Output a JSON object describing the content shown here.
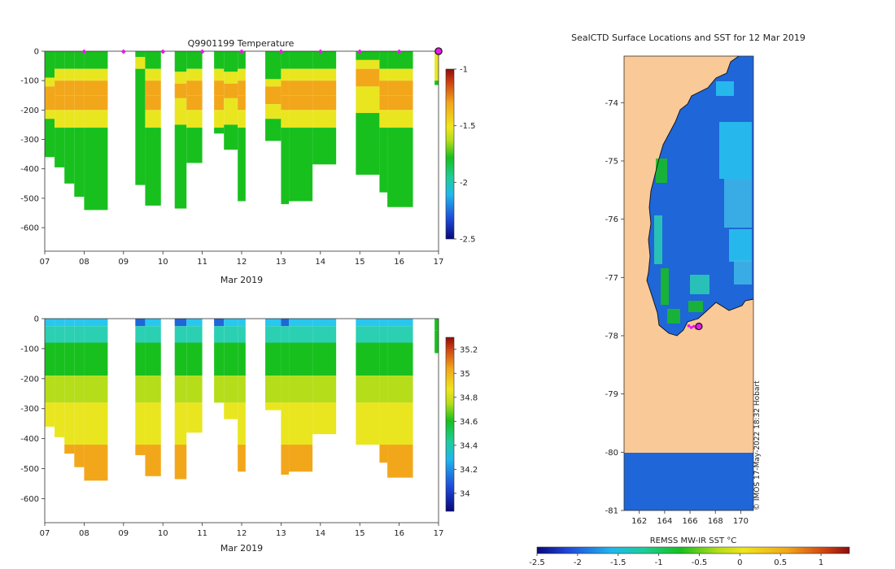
{
  "colors": {
    "green": "#18c01e",
    "yellow": "#e9e61f",
    "orange": "#f2a71b",
    "red": "#cf4413",
    "blue": "#1f66d8",
    "cyan": "#28c7f0",
    "land": "#f9c997",
    "magenta": "#e51be6",
    "deepred": "#8e0c0c",
    "deepblue": "#07077c"
  },
  "chart_data": [
    {
      "type": "heatmap",
      "panel": "temperature",
      "title": "Q9901199  Temperature",
      "xlabel": "Mar 2019",
      "ylabel": "",
      "x_ticks": [
        "07",
        "08",
        "09",
        "10",
        "11",
        "12",
        "13",
        "14",
        "15",
        "16",
        "17"
      ],
      "xlim": [
        7,
        17
      ],
      "ylim": [
        -680,
        0
      ],
      "y_ticks": [
        "0",
        "-100",
        "-200",
        "-300",
        "-400",
        "-500",
        "-600"
      ],
      "y_tick_values": [
        0,
        -100,
        -200,
        -300,
        -400,
        -500,
        -600
      ],
      "colorbar": {
        "ticks": [
          "-1",
          "-1.5",
          "-2",
          "-2.5"
        ],
        "tick_values": [
          -1,
          -1.5,
          -2,
          -2.5
        ],
        "range": [
          -2.5,
          -1
        ]
      },
      "surface_markers_day": [
        8,
        9,
        10,
        11,
        12,
        13,
        14,
        15,
        16
      ],
      "last_position_day": 17,
      "profiles": [
        {
          "x0": 7.0,
          "x1": 7.25,
          "max_depth": 360
        },
        {
          "x0": 7.25,
          "x1": 7.5,
          "max_depth": 395
        },
        {
          "x0": 7.5,
          "x1": 7.75,
          "max_depth": 450
        },
        {
          "x0": 7.75,
          "x1": 8.0,
          "max_depth": 495
        },
        {
          "x0": 8.0,
          "x1": 8.6,
          "max_depth": 540
        },
        {
          "x0": 9.3,
          "x1": 9.55,
          "max_depth": 455
        },
        {
          "x0": 9.55,
          "x1": 9.95,
          "max_depth": 525
        },
        {
          "x0": 10.3,
          "x1": 10.6,
          "max_depth": 535
        },
        {
          "x0": 10.6,
          "x1": 11.0,
          "max_depth": 380
        },
        {
          "x0": 11.3,
          "x1": 11.55,
          "max_depth": 280
        },
        {
          "x0": 11.55,
          "x1": 11.9,
          "max_depth": 335
        },
        {
          "x0": 11.9,
          "x1": 12.1,
          "max_depth": 510
        },
        {
          "x0": 12.6,
          "x1": 13.0,
          "max_depth": 305
        },
        {
          "x0": 13.0,
          "x1": 13.2,
          "max_depth": 520
        },
        {
          "x0": 13.2,
          "x1": 13.8,
          "max_depth": 510
        },
        {
          "x0": 13.8,
          "x1": 14.4,
          "max_depth": 385
        },
        {
          "x0": 14.9,
          "x1": 15.5,
          "max_depth": 420
        },
        {
          "x0": 15.5,
          "x1": 15.7,
          "max_depth": 480
        },
        {
          "x0": 15.7,
          "x1": 16.35,
          "max_depth": 530
        },
        {
          "x0": 16.9,
          "x1": 17.0,
          "max_depth": 115
        }
      ]
    },
    {
      "type": "heatmap",
      "panel": "salinity",
      "title": "",
      "xlabel": "Mar 2019",
      "ylabel": "",
      "x_ticks": [
        "07",
        "08",
        "09",
        "10",
        "11",
        "12",
        "13",
        "14",
        "15",
        "16",
        "17"
      ],
      "xlim": [
        7,
        17
      ],
      "ylim": [
        -680,
        0
      ],
      "y_ticks": [
        "0",
        "-100",
        "-200",
        "-300",
        "-400",
        "-500",
        "-600"
      ],
      "y_tick_values": [
        0,
        -100,
        -200,
        -300,
        -400,
        -500,
        -600
      ],
      "colorbar": {
        "ticks": [
          "35.2",
          "35",
          "34.8",
          "34.6",
          "34.4",
          "34.2",
          "34"
        ],
        "tick_values": [
          35.2,
          35,
          34.8,
          34.6,
          34.4,
          34.2,
          34
        ],
        "range": [
          33.85,
          35.3
        ]
      },
      "profiles": [
        {
          "x0": 7.0,
          "x1": 7.25,
          "max_depth": 360
        },
        {
          "x0": 7.25,
          "x1": 7.5,
          "max_depth": 395
        },
        {
          "x0": 7.5,
          "x1": 7.75,
          "max_depth": 450
        },
        {
          "x0": 7.75,
          "x1": 8.0,
          "max_depth": 495
        },
        {
          "x0": 8.0,
          "x1": 8.6,
          "max_depth": 540
        },
        {
          "x0": 9.3,
          "x1": 9.55,
          "max_depth": 455
        },
        {
          "x0": 9.55,
          "x1": 9.95,
          "max_depth": 525
        },
        {
          "x0": 10.3,
          "x1": 10.6,
          "max_depth": 535
        },
        {
          "x0": 10.6,
          "x1": 11.0,
          "max_depth": 380
        },
        {
          "x0": 11.3,
          "x1": 11.55,
          "max_depth": 280
        },
        {
          "x0": 11.55,
          "x1": 11.9,
          "max_depth": 335
        },
        {
          "x0": 11.9,
          "x1": 12.1,
          "max_depth": 510
        },
        {
          "x0": 12.6,
          "x1": 13.0,
          "max_depth": 305
        },
        {
          "x0": 13.0,
          "x1": 13.2,
          "max_depth": 520
        },
        {
          "x0": 13.2,
          "x1": 13.8,
          "max_depth": 510
        },
        {
          "x0": 13.8,
          "x1": 14.4,
          "max_depth": 385
        },
        {
          "x0": 14.9,
          "x1": 15.5,
          "max_depth": 420
        },
        {
          "x0": 15.5,
          "x1": 15.7,
          "max_depth": 480
        },
        {
          "x0": 15.7,
          "x1": 16.35,
          "max_depth": 530
        },
        {
          "x0": 16.9,
          "x1": 17.0,
          "max_depth": 115
        }
      ]
    },
    {
      "type": "heatmap",
      "panel": "map",
      "title": "SealCTD Surface Locations and SST for 12 Mar 2019",
      "xlabel": "",
      "ylabel": "",
      "x_ticks": [
        "162",
        "164",
        "166",
        "168",
        "170"
      ],
      "x_tick_values": [
        162,
        164,
        166,
        168,
        170
      ],
      "y_ticks": [
        "-74",
        "-75",
        "-76",
        "-77",
        "-78",
        "-79",
        "-80",
        "-81"
      ],
      "y_tick_values": [
        -74,
        -75,
        -76,
        -77,
        -78,
        -79,
        -80,
        -81
      ],
      "xlim": [
        160.8,
        171
      ],
      "ylim": [
        -81,
        -73.2
      ],
      "ice_shelf_lat": -80,
      "last_position": {
        "lon": 166.7,
        "lat": -77.84
      },
      "colorbar": {
        "label": "REMSS MW-IR SST °C",
        "ticks": [
          "-2.5",
          "-2",
          "-1.5",
          "-1",
          "-0.5",
          "0",
          "0.5",
          "1"
        ],
        "tick_values": [
          -2.5,
          -2,
          -1.5,
          -1,
          -0.5,
          0,
          0.5,
          1
        ],
        "range": [
          -2.5,
          1.35
        ]
      },
      "credit": "© IMOS 17-May-2022 18:32 Hobart"
    }
  ]
}
